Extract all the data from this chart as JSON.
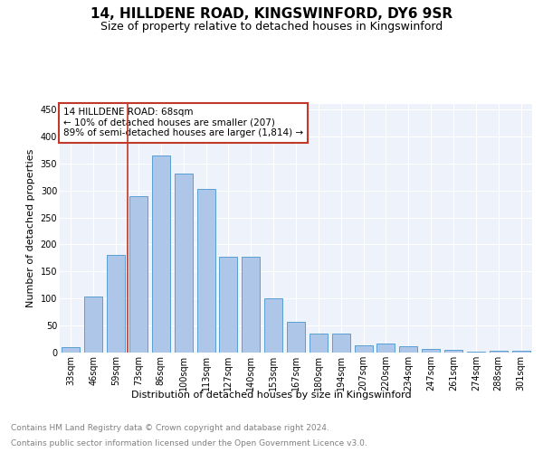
{
  "title1": "14, HILLDENE ROAD, KINGSWINFORD, DY6 9SR",
  "title2": "Size of property relative to detached houses in Kingswinford",
  "xlabel": "Distribution of detached houses by size in Kingswinford",
  "ylabel": "Number of detached properties",
  "categories": [
    "33sqm",
    "46sqm",
    "59sqm",
    "73sqm",
    "86sqm",
    "100sqm",
    "113sqm",
    "127sqm",
    "140sqm",
    "153sqm",
    "167sqm",
    "180sqm",
    "194sqm",
    "207sqm",
    "220sqm",
    "234sqm",
    "247sqm",
    "261sqm",
    "274sqm",
    "288sqm",
    "301sqm"
  ],
  "values": [
    10,
    103,
    181,
    290,
    365,
    332,
    303,
    177,
    177,
    100,
    57,
    35,
    35,
    13,
    17,
    11,
    7,
    5,
    2,
    4,
    3
  ],
  "bar_color": "#aec6e8",
  "bar_edge_color": "#5a9fd4",
  "vline_x_index": 2,
  "vline_color": "#c0392b",
  "annotation_text": "14 HILLDENE ROAD: 68sqm\n← 10% of detached houses are smaller (207)\n89% of semi-detached houses are larger (1,814) →",
  "annotation_box_color": "#c0392b",
  "ylim": [
    0,
    460
  ],
  "yticks": [
    0,
    50,
    100,
    150,
    200,
    250,
    300,
    350,
    400,
    450
  ],
  "background_color": "#eef2fa",
  "footer1": "Contains HM Land Registry data © Crown copyright and database right 2024.",
  "footer2": "Contains public sector information licensed under the Open Government Licence v3.0.",
  "title1_fontsize": 11,
  "title2_fontsize": 9,
  "axis_label_fontsize": 8,
  "tick_fontsize": 7,
  "annotation_fontsize": 7.5,
  "footer_fontsize": 6.5
}
